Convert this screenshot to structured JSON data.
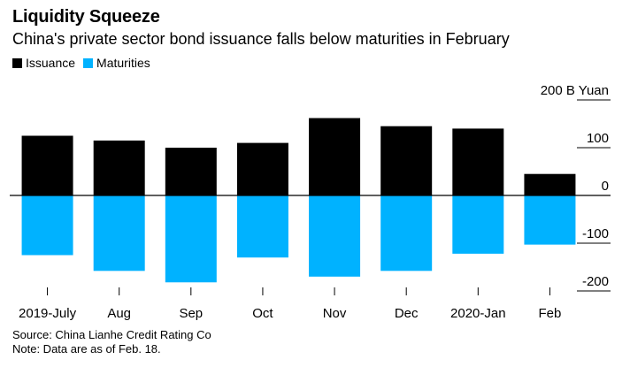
{
  "chart_data": {
    "type": "bar",
    "title": "Liquidity Squeeze",
    "subtitle": "China's private sector bond issuance falls below maturities in February",
    "categories": [
      "2019-July",
      "Aug",
      "Sep",
      "Oct",
      "Nov",
      "Dec",
      "2020-Jan",
      "Feb"
    ],
    "series": [
      {
        "name": "Issuance",
        "color": "#000000",
        "values": [
          125,
          115,
          100,
          110,
          162,
          145,
          140,
          45
        ]
      },
      {
        "name": "Maturities",
        "color": "#00b2ff",
        "values": [
          -125,
          -158,
          -182,
          -130,
          -170,
          -158,
          -122,
          -103
        ]
      }
    ],
    "ylim": [
      -200,
      200
    ],
    "yticks": [
      -200,
      -100,
      0,
      100,
      200
    ],
    "ytick_labels": [
      "-200",
      "-100",
      "0",
      "100",
      "200 B Yuan"
    ],
    "axis_side": "right",
    "source": "Source: China Lianhe Credit Rating Co",
    "note": "Note: Data are as of Feb. 18."
  }
}
